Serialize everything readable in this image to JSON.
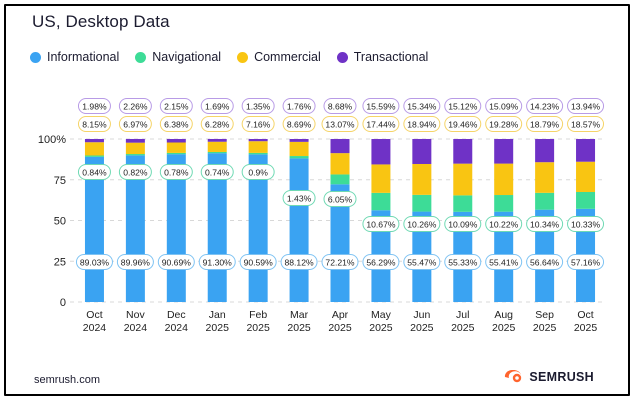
{
  "title": "US, Desktop Data",
  "footer": {
    "source": "semrush.com",
    "brand": "SEMRUSH"
  },
  "icons": {
    "brand": "semrush-fire-logo-icon"
  },
  "colors": {
    "informational": "#3aa3f2",
    "navigational": "#3ddc97",
    "commercial": "#f9c512",
    "transactional": "#6f32c6",
    "grid": "#d8d8d8",
    "brand": "#ff642d"
  },
  "chart_data": {
    "type": "bar",
    "stacked": true,
    "categories": [
      [
        "Oct",
        "2024"
      ],
      [
        "Nov",
        "2024"
      ],
      [
        "Dec",
        "2024"
      ],
      [
        "Jan",
        "2025"
      ],
      [
        "Feb",
        "2025"
      ],
      [
        "Mar",
        "2025"
      ],
      [
        "Apr",
        "2025"
      ],
      [
        "May",
        "2025"
      ],
      [
        "Jun",
        "2025"
      ],
      [
        "Jul",
        "2025"
      ],
      [
        "Aug",
        "2025"
      ],
      [
        "Sep",
        "2025"
      ],
      [
        "Oct",
        "2025"
      ]
    ],
    "y_ticks": [
      "0",
      "25",
      "50",
      "75",
      "100%"
    ],
    "ylim": [
      0,
      100
    ],
    "series": [
      {
        "name": "Informational",
        "key": "informational",
        "values": [
          89.03,
          89.96,
          90.69,
          91.3,
          90.59,
          88.12,
          72.21,
          56.29,
          55.47,
          55.33,
          55.41,
          56.64,
          57.16
        ],
        "labels": [
          "89.03%",
          "89.96%",
          "90.69%",
          "91.30%",
          "90.59%",
          "88.12%",
          "72.21%",
          "56.29%",
          "55.47%",
          "55.33%",
          "55.41%",
          "56.64%",
          "57.16%"
        ]
      },
      {
        "name": "Navigational",
        "key": "navigational",
        "values": [
          0.84,
          0.82,
          0.78,
          0.74,
          0.9,
          1.43,
          6.05,
          10.67,
          10.26,
          10.09,
          10.22,
          10.34,
          10.33
        ],
        "labels": [
          "0.84%",
          "0.82%",
          "0.78%",
          "0.74%",
          "0.9%",
          "1.43%",
          "6.05%",
          "10.67%",
          "10.26%",
          "10.09%",
          "10.22%",
          "10.34%",
          "10.33%"
        ]
      },
      {
        "name": "Commercial",
        "key": "commercial",
        "values": [
          8.15,
          6.97,
          6.38,
          6.28,
          7.16,
          8.69,
          13.07,
          17.44,
          18.94,
          19.46,
          19.28,
          18.79,
          18.57
        ],
        "labels": [
          "8.15%",
          "6.97%",
          "6.38%",
          "6.28%",
          "7.16%",
          "8.69%",
          "13.07%",
          "17.44%",
          "18.94%",
          "19.46%",
          "19.28%",
          "18.79%",
          "18.57%"
        ]
      },
      {
        "name": "Transactional",
        "key": "transactional",
        "values": [
          1.98,
          2.26,
          2.15,
          1.69,
          1.35,
          1.76,
          8.68,
          15.59,
          15.34,
          15.12,
          15.09,
          14.23,
          13.94
        ],
        "labels": [
          "1.98%",
          "2.26%",
          "2.15%",
          "1.69%",
          "1.35%",
          "1.76%",
          "8.68%",
          "15.59%",
          "15.34%",
          "15.12%",
          "15.09%",
          "14.23%",
          "13.94%"
        ]
      }
    ],
    "grid": true,
    "legend_position": "top-left"
  }
}
